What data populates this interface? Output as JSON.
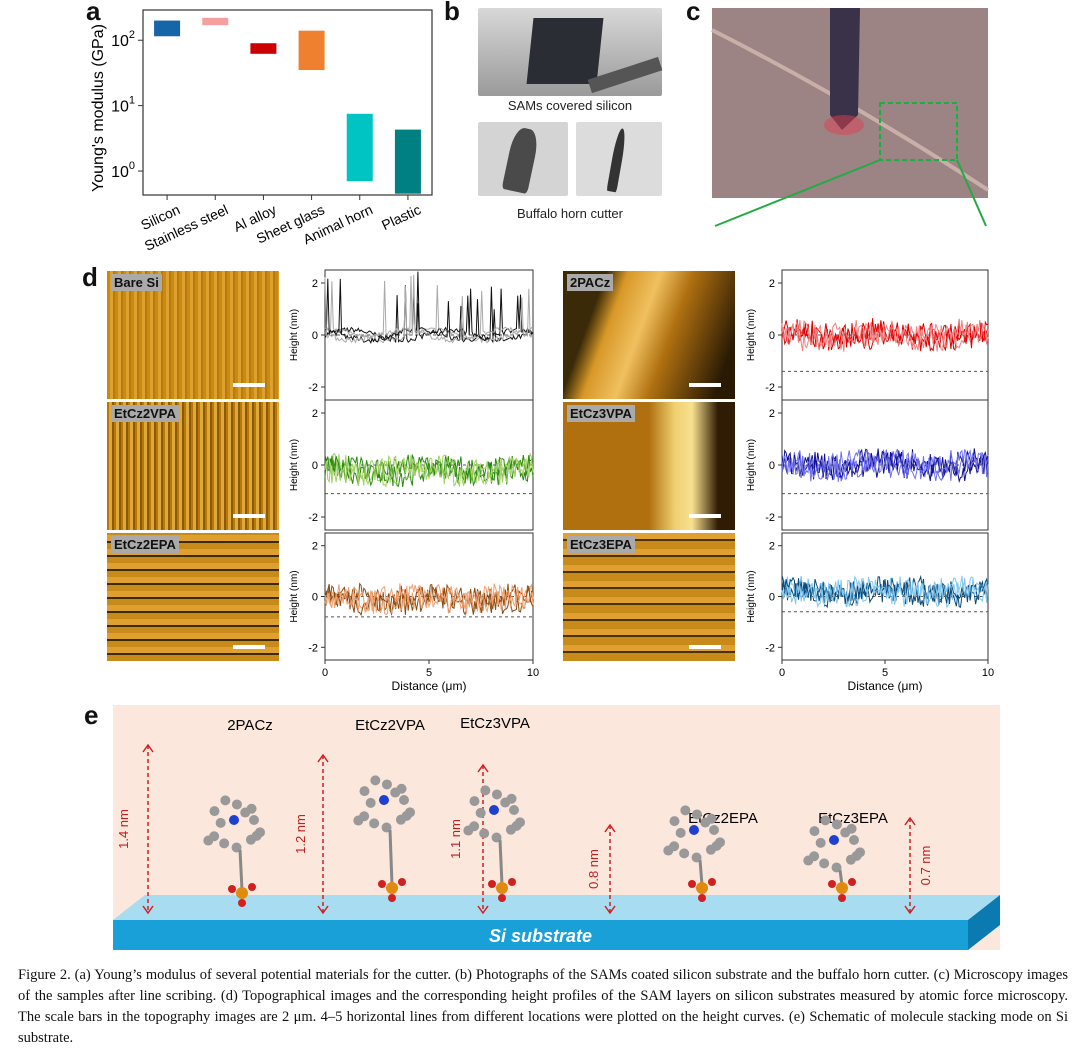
{
  "panels": {
    "a": "a",
    "b": "b",
    "c": "c",
    "d": "d",
    "e": "e"
  },
  "chart_data": [
    {
      "type": "bar",
      "title": "",
      "ylabel": "Young's modulus (GPa)",
      "yscale": "log",
      "ylim": [
        0.43,
        290
      ],
      "yticks": [
        "10",
        "10",
        "10"
      ],
      "ytick_exps": [
        "2",
        "1",
        "0"
      ],
      "categories": [
        "Silicon",
        "Stainless steel",
        "Al alloy",
        "Sheet glass",
        "Animal horn",
        "Plastic"
      ],
      "ranges": [
        [
          115,
          200
        ],
        [
          170,
          220
        ],
        [
          62,
          90
        ],
        [
          35,
          140
        ],
        [
          0.7,
          7.5
        ],
        [
          0.45,
          4.3
        ]
      ],
      "colors": [
        "#1565a8",
        "#f4a0a0",
        "#cc0000",
        "#ee8030",
        "#00c4c4",
        "#008080"
      ]
    },
    {
      "type": "line",
      "xlabel": "Distance (μm)",
      "ylabel": "Height (nm)",
      "xlim": [
        0,
        10
      ],
      "ylim": [
        -2.5,
        2.5
      ],
      "xticks": [
        "0",
        "5",
        "10"
      ],
      "yticks": [
        "2",
        "0",
        "-2"
      ],
      "series": [
        {
          "name": "Bare Si",
          "color": "#111111",
          "light": "#aaaaaa",
          "baseline": 0,
          "dash": null,
          "spikes": true
        },
        {
          "name": "EtCz2VPA",
          "color": "#2a8a10",
          "light": "#a0d060",
          "baseline": -0.2,
          "dash": -1.1
        },
        {
          "name": "EtCz2EPA",
          "color": "#8a4a10",
          "light": "#f0a070",
          "baseline": -0.1,
          "dash": -0.8
        },
        {
          "name": "2PACz",
          "color": "#e00000",
          "light": "#f08080",
          "baseline": 0,
          "dash": -1.4
        },
        {
          "name": "EtCz3VPA",
          "color": "#101090",
          "light": "#7070f0",
          "baseline": 0,
          "dash": -1.1
        },
        {
          "name": "EtCz3EPA",
          "color": "#0a4a7a",
          "light": "#80c8f0",
          "baseline": 0.2,
          "dash": -0.6
        }
      ]
    }
  ],
  "b": {
    "top_label": "SAMs covered silicon",
    "bottom_label": "Buffalo horn cutter"
  },
  "d": {
    "samples": [
      "Bare Si",
      "EtCz2VPA",
      "EtCz2EPA",
      "2PACz",
      "EtCz3VPA",
      "EtCz3EPA"
    ]
  },
  "e": {
    "molecules": [
      "2PACz",
      "EtCz2VPA",
      "EtCz3VPA",
      "EtCz2EPA",
      "EtCz3EPA"
    ],
    "heights": [
      "1.4 nm",
      "1.2 nm",
      "1.1 nm",
      "0.8 nm",
      "0.7 nm"
    ],
    "substrate": "Si substrate"
  },
  "caption": "Figure 2. (a) Young’s modulus of several potential materials for the cutter. (b) Photographs of the SAMs coated silicon substrate and the buffalo horn cutter. (c) Microscopy images of the samples after line scribing. (d) Topographical images and the corresponding height profiles of the SAM layers on silicon substrates measured by atomic force microscopy. The scale bars in the topography images are 2 μm. 4–5 horizontal lines from different locations were plotted on the height curves. (e) Schematic of molecule stacking mode on Si substrate."
}
